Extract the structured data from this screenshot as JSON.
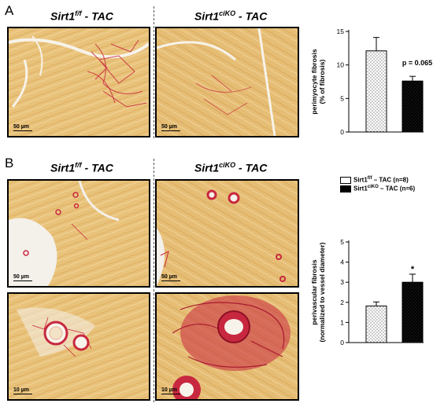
{
  "panel_a": {
    "letter": "A",
    "header_left": {
      "base": "Sirt1",
      "sup": "f/f",
      "rest": " - TAC"
    },
    "header_right": {
      "base": "Sirt1",
      "sup": "ciKO",
      "rest": " - TAC"
    },
    "scalebars": [
      "50 µm",
      "50 µm"
    ]
  },
  "panel_b": {
    "letter": "B",
    "header_left": {
      "base": "Sirt1",
      "sup": "f/f",
      "rest": " - TAC"
    },
    "header_right": {
      "base": "Sirt1",
      "sup": "ciKO",
      "rest": " - TAC"
    },
    "scalebars": [
      "50 µm",
      "50 µm",
      "10 µm",
      "10 µm"
    ],
    "legend": [
      {
        "base": "Sirt1",
        "sup": "f/f",
        "rest": " – TAC (n=8)",
        "fill": "dotted-white"
      },
      {
        "base": "Sirt1",
        "sup": "ciKO",
        "rest": " – TAC (n=6)",
        "fill": "black"
      }
    ]
  },
  "colors": {
    "tissue": "#e9c27a",
    "collagen": "#c8283f",
    "background_white": "#f4f0ea"
  },
  "chart_data": [
    {
      "type": "bar",
      "title": "",
      "ylabel": [
        "perimyocyte fibrosis",
        "(% of fibrosis)"
      ],
      "xlabel": "",
      "ylim": [
        0,
        15
      ],
      "yticks": [
        0,
        5,
        10,
        15
      ],
      "categories": [
        "Sirt1f/f - TAC",
        "Sirt1ciKO - TAC"
      ],
      "values": [
        12.1,
        7.6
      ],
      "errors": [
        2.0,
        0.7
      ],
      "fills": [
        "dotted-white",
        "black"
      ],
      "annotation": "p = 0.065"
    },
    {
      "type": "bar",
      "title": "",
      "ylabel": [
        "perivascular fibrosis",
        "(normalized to vessel diameter)"
      ],
      "xlabel": "",
      "ylim": [
        0,
        5
      ],
      "yticks": [
        0,
        1,
        2,
        3,
        4,
        5
      ],
      "categories": [
        "Sirt1f/f - TAC",
        "Sirt1ciKO - TAC"
      ],
      "values": [
        1.82,
        3.0
      ],
      "errors": [
        0.2,
        0.4
      ],
      "fills": [
        "dotted-white",
        "black"
      ],
      "annotation": "*"
    }
  ]
}
